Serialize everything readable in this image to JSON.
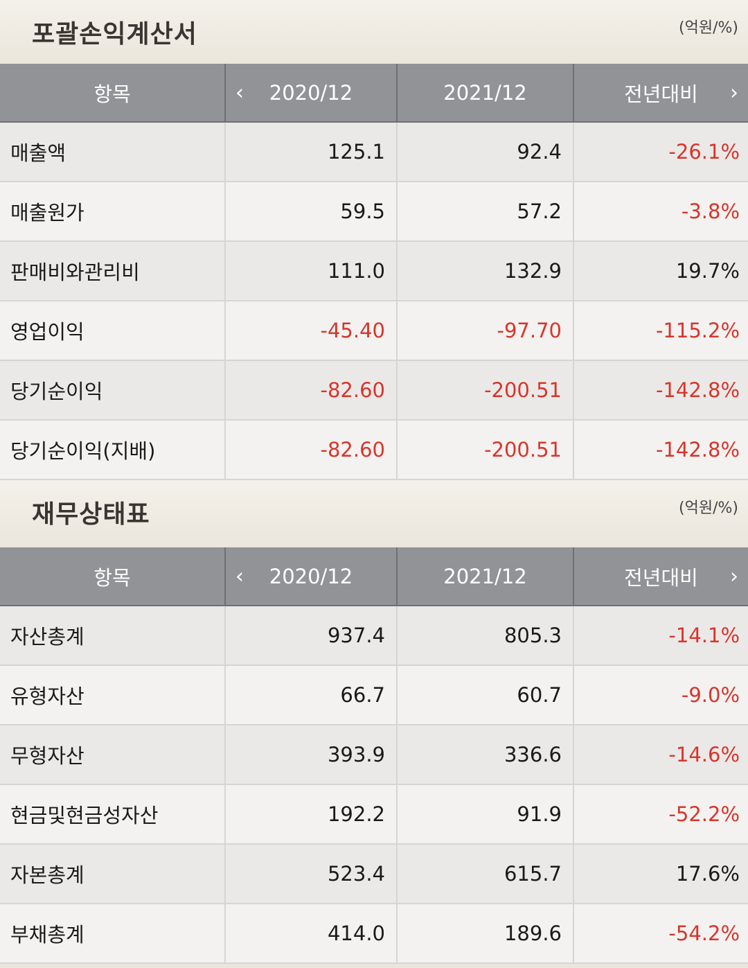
{
  "colors": {
    "header_bg": "#919396",
    "negative": "#d9342b",
    "section_bg": "#ebe6dc"
  },
  "icons": {
    "prev": "chevron-left-icon",
    "next": "chevron-right-icon"
  },
  "sections": [
    {
      "title": "포괄손익계산서",
      "unit": "(억원/%)",
      "headers": [
        "항목",
        "2020/12",
        "2021/12",
        "전년대비"
      ],
      "rows": [
        {
          "label": "매출액",
          "v2020": "125.1",
          "v2021": "92.4",
          "yoy": "-26.1%"
        },
        {
          "label": "매출원가",
          "v2020": "59.5",
          "v2021": "57.2",
          "yoy": "-3.8%"
        },
        {
          "label": "판매비와관리비",
          "v2020": "111.0",
          "v2021": "132.9",
          "yoy": "19.7%"
        },
        {
          "label": "영업이익",
          "v2020": "-45.40",
          "v2021": "-97.70",
          "yoy": "-115.2%"
        },
        {
          "label": "당기순이익",
          "v2020": "-82.60",
          "v2021": "-200.51",
          "yoy": "-142.8%"
        },
        {
          "label": "당기순이익(지배)",
          "v2020": "-82.60",
          "v2021": "-200.51",
          "yoy": "-142.8%"
        }
      ]
    },
    {
      "title": "재무상태표",
      "unit": "(억원/%)",
      "headers": [
        "항목",
        "2020/12",
        "2021/12",
        "전년대비"
      ],
      "rows": [
        {
          "label": "자산총계",
          "v2020": "937.4",
          "v2021": "805.3",
          "yoy": "-14.1%"
        },
        {
          "label": "유형자산",
          "v2020": "66.7",
          "v2021": "60.7",
          "yoy": "-9.0%"
        },
        {
          "label": "무형자산",
          "v2020": "393.9",
          "v2021": "336.6",
          "yoy": "-14.6%"
        },
        {
          "label": "현금및현금성자산",
          "v2020": "192.2",
          "v2021": "91.9",
          "yoy": "-52.2%"
        },
        {
          "label": "자본총계",
          "v2020": "523.4",
          "v2021": "615.7",
          "yoy": "17.6%"
        },
        {
          "label": "부채총계",
          "v2020": "414.0",
          "v2021": "189.6",
          "yoy": "-54.2%"
        }
      ]
    }
  ]
}
